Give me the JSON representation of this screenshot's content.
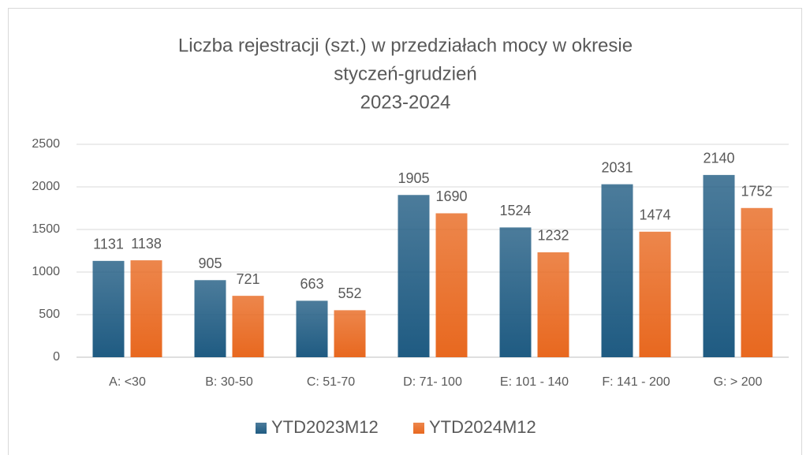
{
  "chart_data": {
    "type": "bar",
    "title": [
      "Liczba rejestracji (szt.) w przedziałach mocy w okresie",
      "styczeń-grudzień",
      "2023-2024"
    ],
    "categories": [
      "A: <30",
      "B: 30-50",
      "C: 51-70",
      "D: 71- 100",
      "E: 101 - 140",
      "F: 141 - 200",
      "G: > 200"
    ],
    "series": [
      {
        "name": "YTD2023M12",
        "color": "#1f5b82",
        "values": [
          1131,
          905,
          663,
          1905,
          1524,
          2031,
          2140
        ]
      },
      {
        "name": "YTD2024M12",
        "color": "#e8681f",
        "values": [
          1138,
          721,
          552,
          1690,
          1232,
          1474,
          1752
        ]
      }
    ],
    "ylim": [
      0,
      2500
    ],
    "yticks": [
      0,
      500,
      1000,
      1500,
      2000,
      2500
    ],
    "grid": true,
    "legend": "bottom"
  }
}
